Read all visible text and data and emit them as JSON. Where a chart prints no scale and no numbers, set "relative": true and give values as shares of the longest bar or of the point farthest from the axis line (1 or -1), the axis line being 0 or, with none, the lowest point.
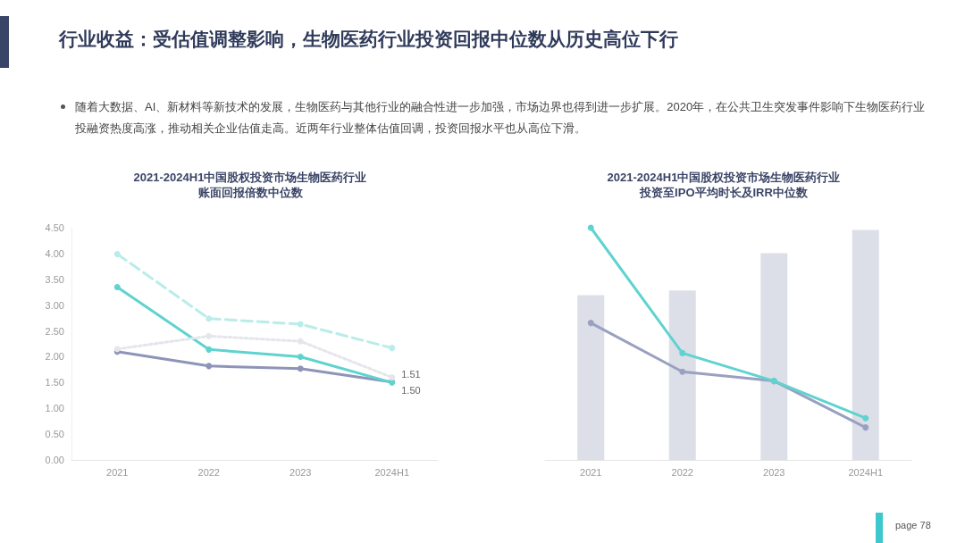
{
  "chart_data": [
    {
      "type": "line",
      "title": "2021-2024H1中国股权投资市场生物医药行业账面回报倍数中位数",
      "categories": [
        "2021",
        "2022",
        "2023",
        "2024H1"
      ],
      "annotations": [
        "行业收益：受估值调整影响，生物医药行业投资回报中位数从历史高位下行",
        "随着大数据、AI、新材料等新技术的发展，生物医药与其他行业的融合性进一步加强，市场边界也得到进一步扩展。2020年，在公共卫生突发事件影响下生物医药行业投融资热度高涨，推动相关企业估值走高。近两年行业整体估值回调，投资回报水平也从高位下滑。",
        "page  78"
      ],
      "series": [
        {
          "color": "#8e94b8",
          "values": [
            2.1,
            1.82,
            1.77,
            1.51
          ],
          "value_labels": [
            null,
            null,
            null,
            "1.51"
          ]
        },
        {
          "color": "#5fd3d0",
          "values": [
            3.35,
            2.14,
            2.0,
            1.5
          ],
          "value_labels": [
            null,
            null,
            null,
            "1.50"
          ]
        },
        {
          "color": "#e4e6ec",
          "line_style": "dotted",
          "values": [
            2.15,
            2.4,
            2.3,
            1.6
          ]
        },
        {
          "color": "#b9ecea",
          "line_style": "dashed",
          "values": [
            3.99,
            2.74,
            2.63,
            2.17
          ]
        }
      ],
      "ylim": [
        0,
        4.5
      ],
      "yticks": [
        {
          "value": 0,
          "label": "0.00"
        },
        {
          "value": 0.5,
          "label": "0.50"
        },
        {
          "value": 1,
          "label": "1.00"
        },
        {
          "value": 1.5,
          "label": "1.50"
        },
        {
          "value": 2,
          "label": "2.00"
        },
        {
          "value": 2.5,
          "label": "2.50"
        },
        {
          "value": 3,
          "label": "3.00"
        },
        {
          "value": 3.5,
          "label": "3.50"
        },
        {
          "value": 4,
          "label": "4.00"
        },
        {
          "value": 4.5,
          "label": "4.50"
        }
      ],
      "marker": "circle",
      "line_style": "solid",
      "grid": false
    },
    {
      "type": "bar",
      "title": "2021-2024H1中国股权投资市场生物医药行业投资至IPO平均时长及IRR中位数",
      "categories": [
        "2021",
        "2022",
        "2023",
        "2024H1"
      ],
      "relative": true,
      "tick_labels": "x",
      "series": [
        {
          "color": "#dcdfe8",
          "values": [
            0.71,
            0.73,
            0.89,
            0.99
          ]
        },
        {
          "type": "line",
          "color": "#9aa0c0",
          "values": [
            0.59,
            0.38,
            0.34,
            0.14
          ]
        },
        {
          "type": "line",
          "color": "#5fd3d0",
          "values": [
            1,
            0.46,
            0.34,
            0.18
          ]
        }
      ],
      "marker": "circle",
      "grid": false
    }
  ]
}
